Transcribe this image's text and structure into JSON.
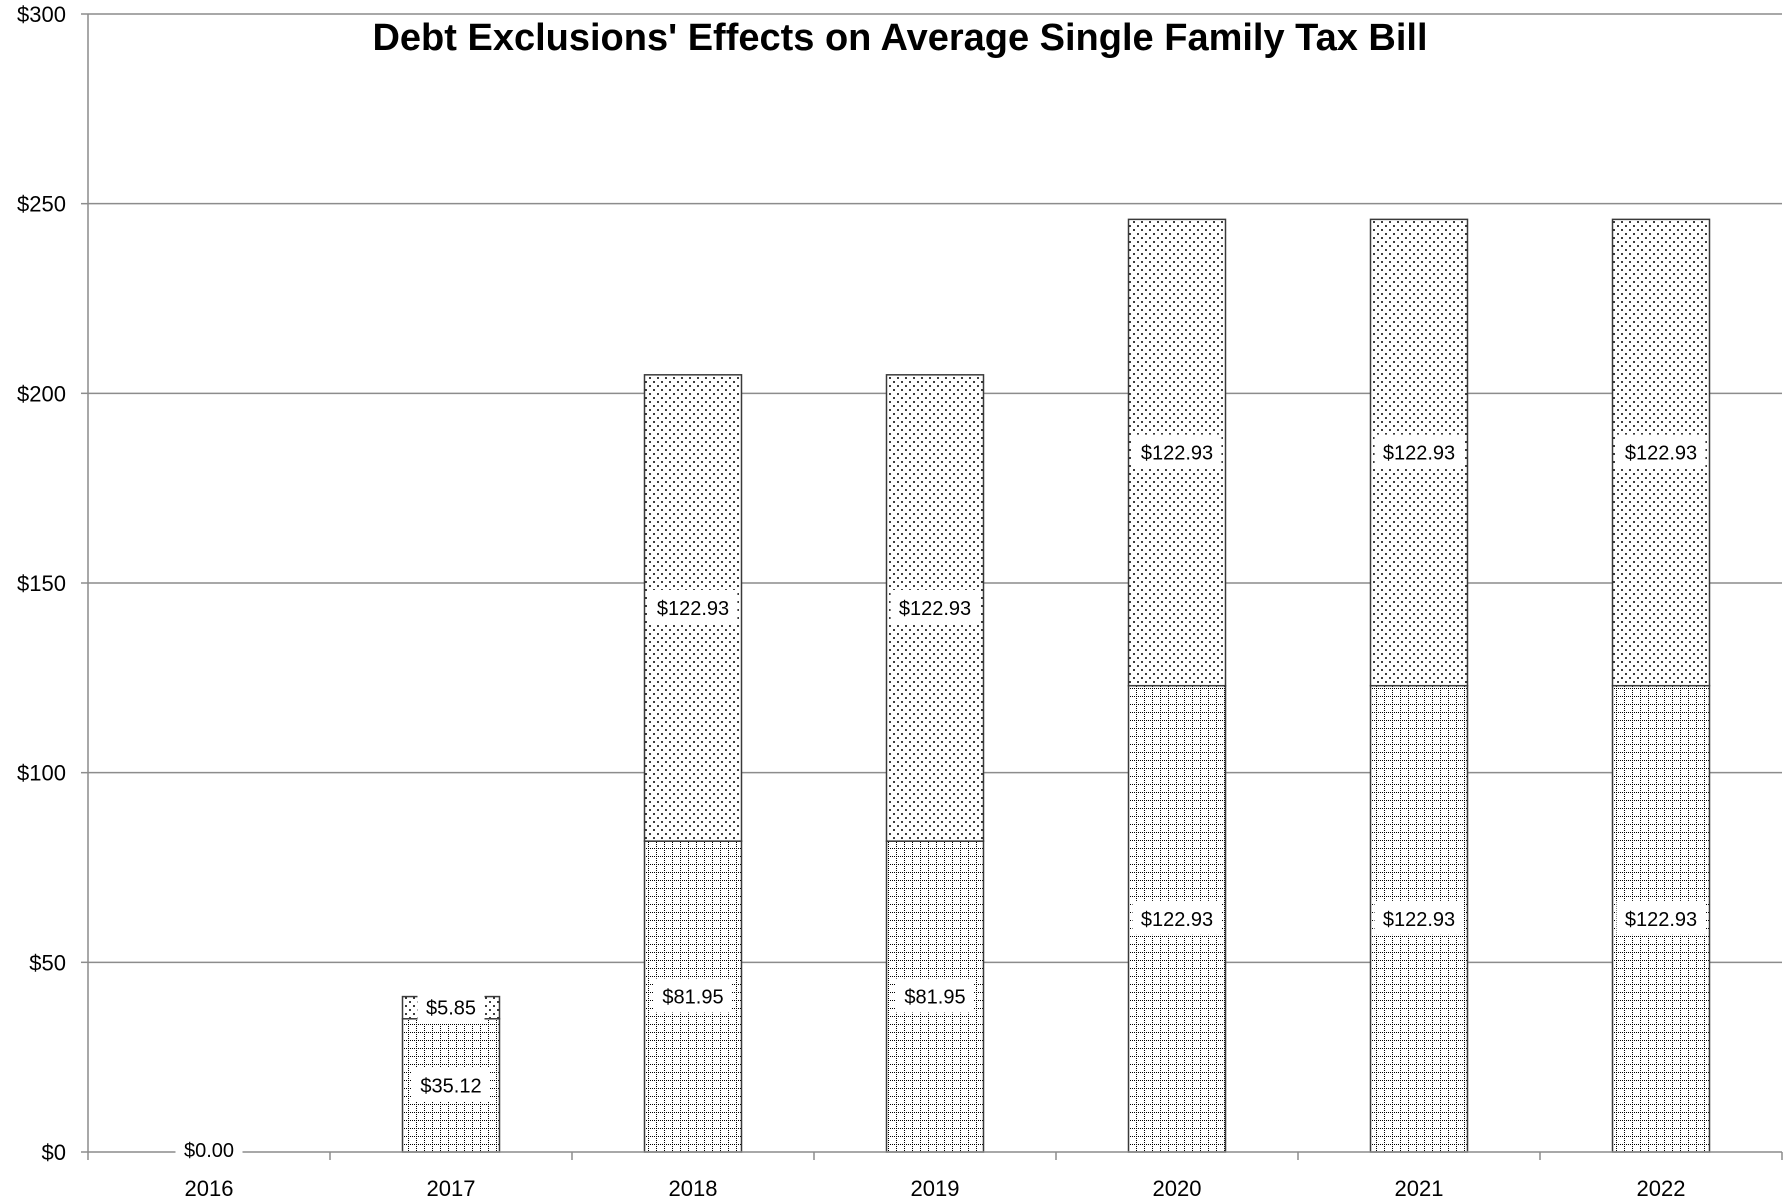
{
  "chart_data": {
    "type": "bar",
    "stacked": true,
    "title": "Debt Exclusions' Effects on Average Single Family Tax Bill",
    "xlabel": "",
    "ylabel": "",
    "categories": [
      "2016",
      "2017",
      "2018",
      "2019",
      "2020",
      "2021",
      "2022"
    ],
    "ylim": [
      0,
      300
    ],
    "yticks": [
      0,
      50,
      100,
      150,
      200,
      250,
      300
    ],
    "ytick_labels": [
      "$0",
      "$50",
      "$100",
      "$150",
      "$200",
      "$250",
      "$300"
    ],
    "grid": true,
    "legend": "none",
    "series": [
      {
        "values": [
          0,
          35.12,
          81.95,
          81.95,
          122.93,
          122.93,
          122.93
        ],
        "labels": [
          "$0.00",
          "$35.12",
          "$81.95",
          "$81.95",
          "$122.93",
          "$122.93",
          "$122.93"
        ],
        "pattern": "grid"
      },
      {
        "values": [
          0,
          5.85,
          122.93,
          122.93,
          122.93,
          122.93,
          122.93
        ],
        "labels": [
          "",
          "$5.85",
          "$122.93",
          "$122.93",
          "$122.93",
          "$122.93",
          "$122.93"
        ],
        "pattern": "dots"
      }
    ]
  }
}
